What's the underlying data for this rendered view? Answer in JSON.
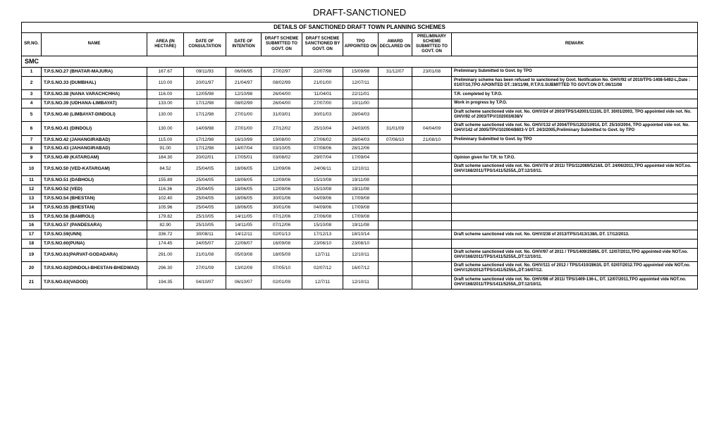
{
  "title": "DRAFT-SANCTIONED",
  "subtitle": "DETAILS OF SANCTIONED   DRAFT   TOWN PLANNING SCHEMES",
  "headers": {
    "sr": "SR.NO.",
    "name": "NAME",
    "area": "AREA (IN HECTARE)",
    "consult": "DATE OF CONSULTATION",
    "intention": "DATE OF INTENTION",
    "draft_submitted": "DRAFT SCHEME SUBMITTED TO GOVT. ON",
    "draft_sanctioned": "DRAFT SCHEME SANCTIONED BY GOVT. ON",
    "tpo": "TPO APPOINTED ON",
    "award": "AWARD DECLARED ON",
    "prelim": "PRELIMINARY SCHEME SUBMITTED TO GOVT. ON",
    "remark": "REMARK"
  },
  "section": "SMC",
  "rows": [
    {
      "sr": "1",
      "name": "T.P.S.NO.27 (BHATAR-MAJURA)",
      "area": "167.67",
      "d1": "09/11/93",
      "d2": "06/06/95",
      "d3": "27/02/97",
      "d4": "22/07/98",
      "d5": "15/09/98",
      "d6": "31/12/07",
      "d7": "23/01/08",
      "remark": "Preliminary Submitted to Govt. by TPO"
    },
    {
      "sr": "2",
      "name": "T.P.S.NO.33 (DUMBHAL)",
      "area": "110.00",
      "d1": "20/01/97",
      "d2": "21/04/97",
      "d3": "08/02/99",
      "d4": "21/01/00",
      "d5": "12/07/11",
      "d6": "",
      "d7": "",
      "remark": "Preliminary scheme has been refused to sanctioned by         Govt. Notification No. GH/V/92 of  2010/TPS-1408-5492-L,Date : 01/07/10,TPO APOINTED DT.:19/11/99, P.T.P.S.SUBMITTED TO GOVT.ON DT.:06/11/08"
    },
    {
      "sr": "3",
      "name": "T.P.S.NO.38 (NANA VARACHCHHA)",
      "area": "116.00",
      "d1": "12/05/98",
      "d2": "12/10/98",
      "d3": "26/04/00",
      "d4": "'11/04/01",
      "d5": "22/11/01",
      "d6": "",
      "d7": "",
      "remark": "T.R. completed by T.P.O."
    },
    {
      "sr": "4",
      "name": "T.P.S.NO.39 (UDHANA-LIMBAYAT)",
      "area": "133.00",
      "d1": "17/12/98",
      "d2": "08/02/99",
      "d3": "26/04/00",
      "d4": "27/07/00",
      "d5": "10/11/00",
      "d6": "",
      "d7": "",
      "remark": "Work in progress by T.P.O."
    },
    {
      "sr": "5",
      "name": "T.P.S.NO.40 (LIMBAYAT-DINDOLI)",
      "area": "130.00",
      "d1": "17/12/98",
      "d2": "27/01/00",
      "d3": "31/03/01",
      "d4": "30/01/03",
      "d5": "28/04/03",
      "d6": "",
      "d7": "",
      "remark": "Draft scheme sanctioned  vide not. No. GH/V/24 of 2003/TPS/142001/1110/L DT. 30/01/2003, TPO appointed vide not. No. GH/V/92 of 2003/TPV/102003/638/V"
    },
    {
      "sr": "6",
      "name": "T.P.S.NO.41 (DINDOLI)",
      "area": "130.00",
      "d1": "14/09/98",
      "d2": "27/01/00",
      "d3": "27/12/02",
      "d4": "25/10/04",
      "d5": "24/03/05",
      "d6": "31/01/09",
      "d7": "04/04/09",
      "remark": "Draft scheme sanctioned  vide not. No. GH/V/132 of 2004/TPS/1202/1091/L DT. 25/10/2004, TPO appointed vide not. No. GH/V/142 of 2005/TPV/102004/8603-V DT. 24/3/2005,Preliminary Submitted to Govt. by TPO"
    },
    {
      "sr": "7",
      "name": "T.P.S.NO.42 (JAHANGIRABAD)",
      "area": "115.00",
      "d1": "17/12/98",
      "d2": "16/10/99",
      "d3": "19/08/00",
      "d4": "27/06/02",
      "d5": "28/04/03",
      "d6": "07/06/10",
      "d7": "21/08/10",
      "remark": "Preliminary Submitted to Govt. by TPO"
    },
    {
      "sr": "8",
      "name": "T.P.S.NO.43 (JAHANGIRABAD)",
      "area": "91.00",
      "d1": "17/12/98",
      "d2": "14/07/04",
      "d3": "03/10/05",
      "d4": "07/08/06",
      "d5": "28/12/06",
      "d6": "",
      "d7": "",
      "remark": ""
    },
    {
      "sr": "9",
      "name": "T.P.S.NO.49 (KATARGAM)",
      "area": "184.30",
      "d1": "20/02/01",
      "d2": "17/05/01",
      "d3": "03/08/02",
      "d4": "29/07/04",
      "d5": "17/09/04",
      "d6": "",
      "d7": "",
      "remark": "Opinion given for T.R. to T.P.O."
    },
    {
      "sr": "10",
      "name": "T.P.S.NO.50 (VED-KATARGAM)",
      "area": "84.52",
      "d1": "25/04/05",
      "d2": "18/06/05",
      "d3": "12/09/06",
      "d4": "24/06/11",
      "d5": "12/10/11",
      "d6": "",
      "d7": "",
      "remark": "Draft scheme sanctioned  vide not. No. GH/V/78 of 2011/ TPS/112089/5216/L DT. 24/06/2011,TPO appointed vide NOT.no. GH/V/168/2011/TPS/1411/5255/L,DT:12/10/11."
    },
    {
      "sr": "11",
      "name": "T.P.S.NO.51 (DABHOLI)",
      "area": "155.89",
      "d1": "25/04/05",
      "d2": "18/06/05",
      "d3": "12/09/06",
      "d4": "15/10/08",
      "d5": "19/11/08",
      "d6": "",
      "d7": "",
      "remark": ""
    },
    {
      "sr": "12",
      "name": "T.P.S.NO.52 (VED)",
      "area": "116.36",
      "d1": "25/04/05",
      "d2": "18/06/05",
      "d3": "12/09/06",
      "d4": "15/10/08",
      "d5": "19/11/08",
      "d6": "",
      "d7": "",
      "remark": ""
    },
    {
      "sr": "13",
      "name": "T.P.S.NO.54 (BHESTAN)",
      "area": "102.40",
      "d1": "25/04/05",
      "d2": "18/06/05",
      "d3": "30/01/06",
      "d4": "04/09/06",
      "d5": "17/09/08",
      "d6": "",
      "d7": "",
      "remark": ""
    },
    {
      "sr": "14",
      "name": "T.P.S.NO.55 (BHESTAN)",
      "area": "105.96",
      "d1": "25/04/05",
      "d2": "18/06/05",
      "d3": "30/01/06",
      "d4": "04/09/06",
      "d5": "17/09/08",
      "d6": "",
      "d7": "",
      "remark": ""
    },
    {
      "sr": "15",
      "name": "T.P.S.NO.56 (BAMROLI)",
      "area": "179.82",
      "d1": "25/10/05",
      "d2": "14/11/05",
      "d3": "07/12/06",
      "d4": "27/06/08",
      "d5": "17/09/08",
      "d6": "",
      "d7": "",
      "remark": ""
    },
    {
      "sr": "16",
      "name": "T.P.S.NO.57 (PANDESARA)",
      "area": "82.90",
      "d1": "25/10/05",
      "d2": "14/11/05",
      "d3": "07/12/06",
      "d4": "15/10/08",
      "d5": "19/11/08",
      "d6": "",
      "d7": "",
      "remark": ""
    },
    {
      "sr": "17",
      "name": "T.P.S.NO.59(UNN)",
      "area": "336.72",
      "d1": "30/08/11",
      "d2": "14/12/11",
      "d3": "02/01/13",
      "d4": "17/12/13",
      "d5": "18/10/14",
      "d6": "",
      "d7": "",
      "remark": "Draft scheme sanctioned vide not. No. GH/V/238 of 2013/TPS/1413/138/L DT. 17/12/2013."
    },
    {
      "sr": "18",
      "name": "T.P.S.NO.60(PUNA)",
      "area": "174.45",
      "d1": "24/05/07",
      "d2": "22/06/07",
      "d3": "16/09/08",
      "d4": "23/06/10",
      "d5": "23/08/10",
      "d6": "",
      "d7": "",
      "remark": ""
    },
    {
      "sr": "19",
      "name": "T.P.S.NO.61(PARVAT-GODADARA)",
      "area": "291.00",
      "d1": "21/01/08",
      "d2": "05/03/08",
      "d3": "18/05/09",
      "d4": "12/7/11",
      "d5": "12/10/11",
      "d6": "",
      "d7": "",
      "remark": "Draft scheme sanctioned  vide not. No. GH/V/97 of 2011 / TPS/1409/2589/L DT. 12/07/2011,TPO appointed vide NOT.no. GH/V/168/2011/TPS/1411/5255/L,DT:12/10/11."
    },
    {
      "sr": "20",
      "name": "T.P.S.NO.62(DINDOLI-BHESTAN-BHEDWAD)",
      "area": "296.30",
      "d1": "27/01/09",
      "d2": "13/02/09",
      "d3": "07/05/10",
      "d4": "02/07/12",
      "d5": "16/07/12",
      "d6": "",
      "d7": "",
      "remark": "Draft scheme sanctioned  vide not. No. GH/V/111 of 2012 / TPS/1410/2863/L DT. 02/07/2012.TPO appointed vide NOT.no. GH/V/120/2012/TPS/1411/5255/L,DT:16/07/12."
    },
    {
      "sr": "21",
      "name": "T.P.S.NO.63(VADOD)",
      "area": "194.35",
      "d1": "04/10/07",
      "d2": "06/10/07",
      "d3": "02/01/09",
      "d4": "12/7/11",
      "d5": "12/10/11",
      "d6": "",
      "d7": "",
      "remark": "Draft scheme sanctioned  vide not. No. GH/V/98 of 2011/ TPS/1409-136-L, DT. 12/07/2011,TPO appointed vide NOT.no. GH/V/168/2011/TPS/1411/5255/L,DT:12/10/11."
    }
  ]
}
